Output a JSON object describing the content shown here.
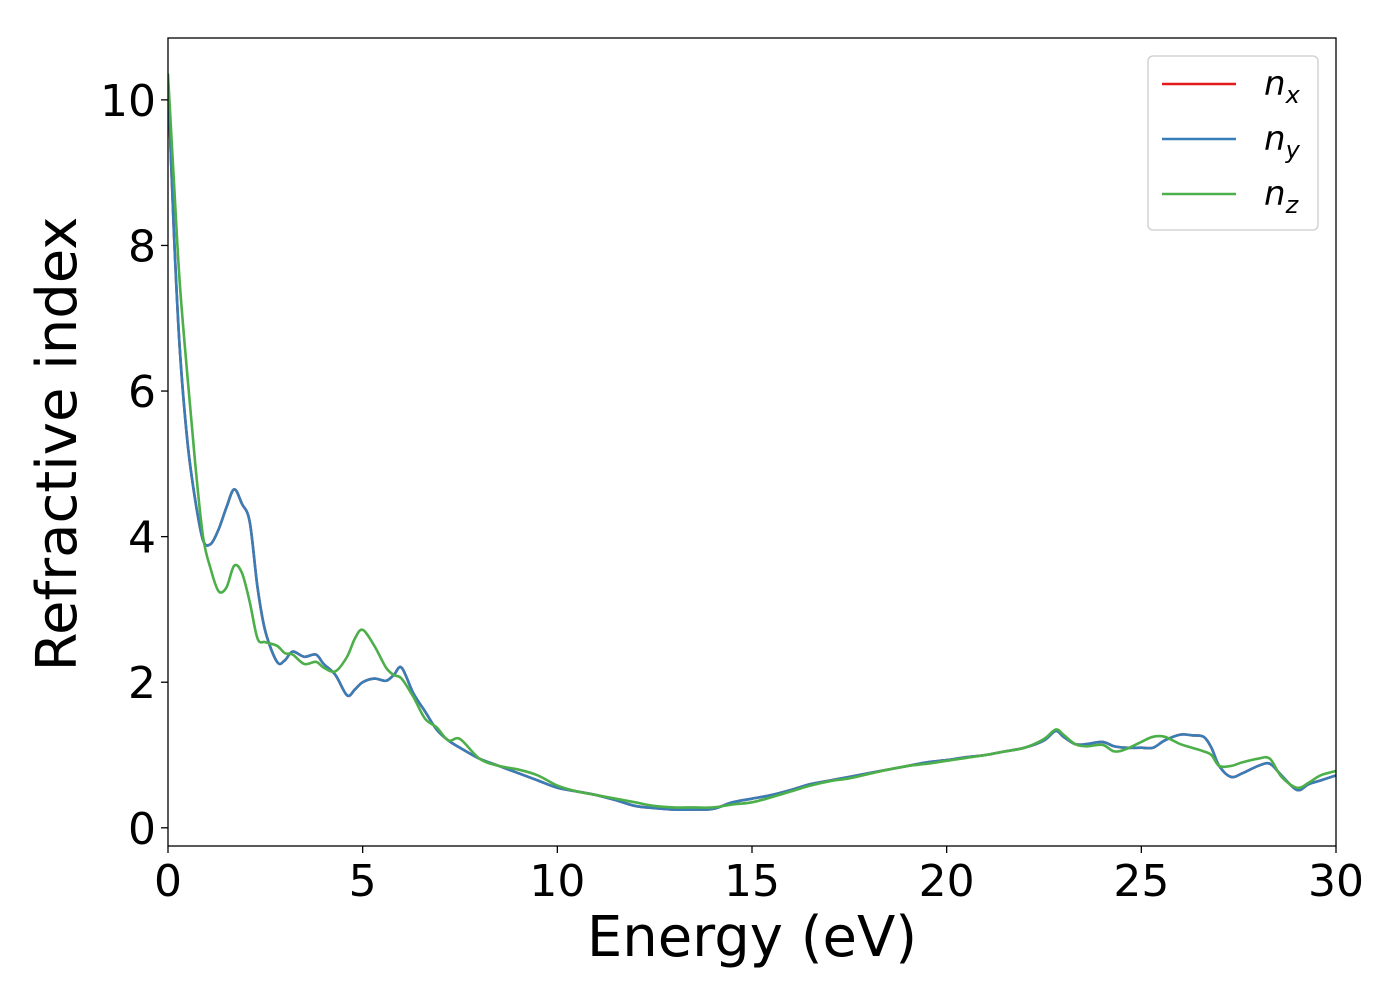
{
  "chart_data": {
    "type": "line",
    "title": "",
    "xlabel": "Energy (eV)",
    "ylabel": "Refractive index",
    "xlim": [
      0,
      30
    ],
    "ylim": [
      -0.25,
      10.85
    ],
    "xticks": [
      0,
      5,
      10,
      15,
      20,
      25,
      30
    ],
    "yticks": [
      0,
      2,
      4,
      6,
      8,
      10
    ],
    "grid": false,
    "legend": "top-right",
    "series": [
      {
        "name": "n_x",
        "legend_base": "n",
        "legend_sub": "x",
        "color": "#e41a1c",
        "x": [
          0,
          0.15,
          0.3,
          0.5,
          0.7,
          0.9,
          1.1,
          1.3,
          1.5,
          1.7,
          1.9,
          2.1,
          2.3,
          2.5,
          2.8,
          3.0,
          3.2,
          3.5,
          3.8,
          4.0,
          4.3,
          4.6,
          4.8,
          5.0,
          5.3,
          5.6,
          5.8,
          6.0,
          6.3,
          6.6,
          6.9,
          7.2,
          7.5,
          8.0,
          8.5,
          9.0,
          9.5,
          10.0,
          10.5,
          11.0,
          11.5,
          12.0,
          12.5,
          13.0,
          13.5,
          14.0,
          14.5,
          15.0,
          15.5,
          16.0,
          16.5,
          17.0,
          17.5,
          18.0,
          18.5,
          19.0,
          19.5,
          20.0,
          20.5,
          21.0,
          21.5,
          22.0,
          22.5,
          22.8,
          23.0,
          23.3,
          23.6,
          24.0,
          24.3,
          24.6,
          25.0,
          25.3,
          25.6,
          26.0,
          26.3,
          26.6,
          26.8,
          27.0,
          27.3,
          27.6,
          28.0,
          28.3,
          28.6,
          29.0,
          29.3,
          29.6,
          30.0
        ],
        "y": [
          10.3,
          8.2,
          6.6,
          5.3,
          4.5,
          3.95,
          3.9,
          4.1,
          4.4,
          4.65,
          4.45,
          4.2,
          3.3,
          2.7,
          2.28,
          2.3,
          2.42,
          2.35,
          2.38,
          2.25,
          2.1,
          1.82,
          1.9,
          2.0,
          2.05,
          2.02,
          2.1,
          2.2,
          1.85,
          1.6,
          1.35,
          1.2,
          1.1,
          0.95,
          0.85,
          0.75,
          0.65,
          0.55,
          0.5,
          0.45,
          0.38,
          0.3,
          0.27,
          0.25,
          0.25,
          0.26,
          0.35,
          0.4,
          0.45,
          0.52,
          0.6,
          0.65,
          0.7,
          0.75,
          0.8,
          0.85,
          0.9,
          0.93,
          0.97,
          1.0,
          1.05,
          1.1,
          1.2,
          1.33,
          1.25,
          1.15,
          1.15,
          1.18,
          1.12,
          1.1,
          1.1,
          1.1,
          1.2,
          1.28,
          1.27,
          1.25,
          1.1,
          0.85,
          0.7,
          0.75,
          0.85,
          0.88,
          0.72,
          0.52,
          0.6,
          0.65,
          0.72
        ]
      },
      {
        "name": "n_y",
        "legend_base": "n",
        "legend_sub": "y",
        "color": "#377eb8",
        "x": [
          0,
          0.15,
          0.3,
          0.5,
          0.7,
          0.9,
          1.1,
          1.3,
          1.5,
          1.7,
          1.9,
          2.1,
          2.3,
          2.5,
          2.8,
          3.0,
          3.2,
          3.5,
          3.8,
          4.0,
          4.3,
          4.6,
          4.8,
          5.0,
          5.3,
          5.6,
          5.8,
          6.0,
          6.3,
          6.6,
          6.9,
          7.2,
          7.5,
          8.0,
          8.5,
          9.0,
          9.5,
          10.0,
          10.5,
          11.0,
          11.5,
          12.0,
          12.5,
          13.0,
          13.5,
          14.0,
          14.5,
          15.0,
          15.5,
          16.0,
          16.5,
          17.0,
          17.5,
          18.0,
          18.5,
          19.0,
          19.5,
          20.0,
          20.5,
          21.0,
          21.5,
          22.0,
          22.5,
          22.8,
          23.0,
          23.3,
          23.6,
          24.0,
          24.3,
          24.6,
          25.0,
          25.3,
          25.6,
          26.0,
          26.3,
          26.6,
          26.8,
          27.0,
          27.3,
          27.6,
          28.0,
          28.3,
          28.6,
          29.0,
          29.3,
          29.6,
          30.0
        ],
        "y": [
          10.3,
          8.2,
          6.6,
          5.3,
          4.5,
          3.95,
          3.9,
          4.1,
          4.4,
          4.65,
          4.45,
          4.2,
          3.3,
          2.7,
          2.28,
          2.3,
          2.42,
          2.35,
          2.38,
          2.25,
          2.1,
          1.82,
          1.9,
          2.0,
          2.05,
          2.02,
          2.1,
          2.2,
          1.85,
          1.6,
          1.35,
          1.2,
          1.1,
          0.95,
          0.85,
          0.75,
          0.65,
          0.55,
          0.5,
          0.45,
          0.38,
          0.3,
          0.27,
          0.25,
          0.25,
          0.26,
          0.35,
          0.4,
          0.45,
          0.52,
          0.6,
          0.65,
          0.7,
          0.75,
          0.8,
          0.85,
          0.9,
          0.93,
          0.97,
          1.0,
          1.05,
          1.1,
          1.2,
          1.33,
          1.25,
          1.15,
          1.15,
          1.18,
          1.12,
          1.1,
          1.1,
          1.1,
          1.2,
          1.28,
          1.27,
          1.25,
          1.1,
          0.85,
          0.7,
          0.75,
          0.85,
          0.88,
          0.72,
          0.52,
          0.6,
          0.65,
          0.72
        ]
      },
      {
        "name": "n_z",
        "legend_base": "n",
        "legend_sub": "z",
        "color": "#4daf4a",
        "x": [
          0,
          0.15,
          0.3,
          0.5,
          0.7,
          0.9,
          1.1,
          1.3,
          1.5,
          1.7,
          1.9,
          2.1,
          2.3,
          2.5,
          2.8,
          3.0,
          3.2,
          3.5,
          3.8,
          4.0,
          4.3,
          4.6,
          4.8,
          5.0,
          5.3,
          5.6,
          5.8,
          6.0,
          6.3,
          6.6,
          6.9,
          7.2,
          7.5,
          8.0,
          8.5,
          9.0,
          9.5,
          10.0,
          10.5,
          11.0,
          11.5,
          12.0,
          12.5,
          13.0,
          13.5,
          14.0,
          14.5,
          15.0,
          15.5,
          16.0,
          16.5,
          17.0,
          17.5,
          18.0,
          18.5,
          19.0,
          19.5,
          20.0,
          20.5,
          21.0,
          21.5,
          22.0,
          22.5,
          22.8,
          23.0,
          23.3,
          23.6,
          24.0,
          24.3,
          24.6,
          25.0,
          25.3,
          25.6,
          26.0,
          26.3,
          26.6,
          26.8,
          27.0,
          27.3,
          27.6,
          28.0,
          28.3,
          28.6,
          29.0,
          29.3,
          29.6,
          30.0
        ],
        "y": [
          10.35,
          8.9,
          7.5,
          6.2,
          5.0,
          4.0,
          3.55,
          3.25,
          3.3,
          3.6,
          3.5,
          3.1,
          2.6,
          2.55,
          2.5,
          2.4,
          2.38,
          2.25,
          2.28,
          2.2,
          2.15,
          2.35,
          2.6,
          2.72,
          2.5,
          2.2,
          2.1,
          2.05,
          1.8,
          1.5,
          1.38,
          1.2,
          1.22,
          0.95,
          0.85,
          0.8,
          0.72,
          0.58,
          0.5,
          0.45,
          0.4,
          0.35,
          0.3,
          0.28,
          0.28,
          0.28,
          0.32,
          0.35,
          0.42,
          0.5,
          0.58,
          0.64,
          0.68,
          0.74,
          0.8,
          0.85,
          0.88,
          0.92,
          0.96,
          1.0,
          1.05,
          1.1,
          1.22,
          1.35,
          1.28,
          1.15,
          1.12,
          1.14,
          1.05,
          1.08,
          1.18,
          1.25,
          1.25,
          1.15,
          1.1,
          1.05,
          1.0,
          0.85,
          0.85,
          0.9,
          0.95,
          0.95,
          0.7,
          0.55,
          0.62,
          0.72,
          0.78
        ]
      }
    ]
  }
}
